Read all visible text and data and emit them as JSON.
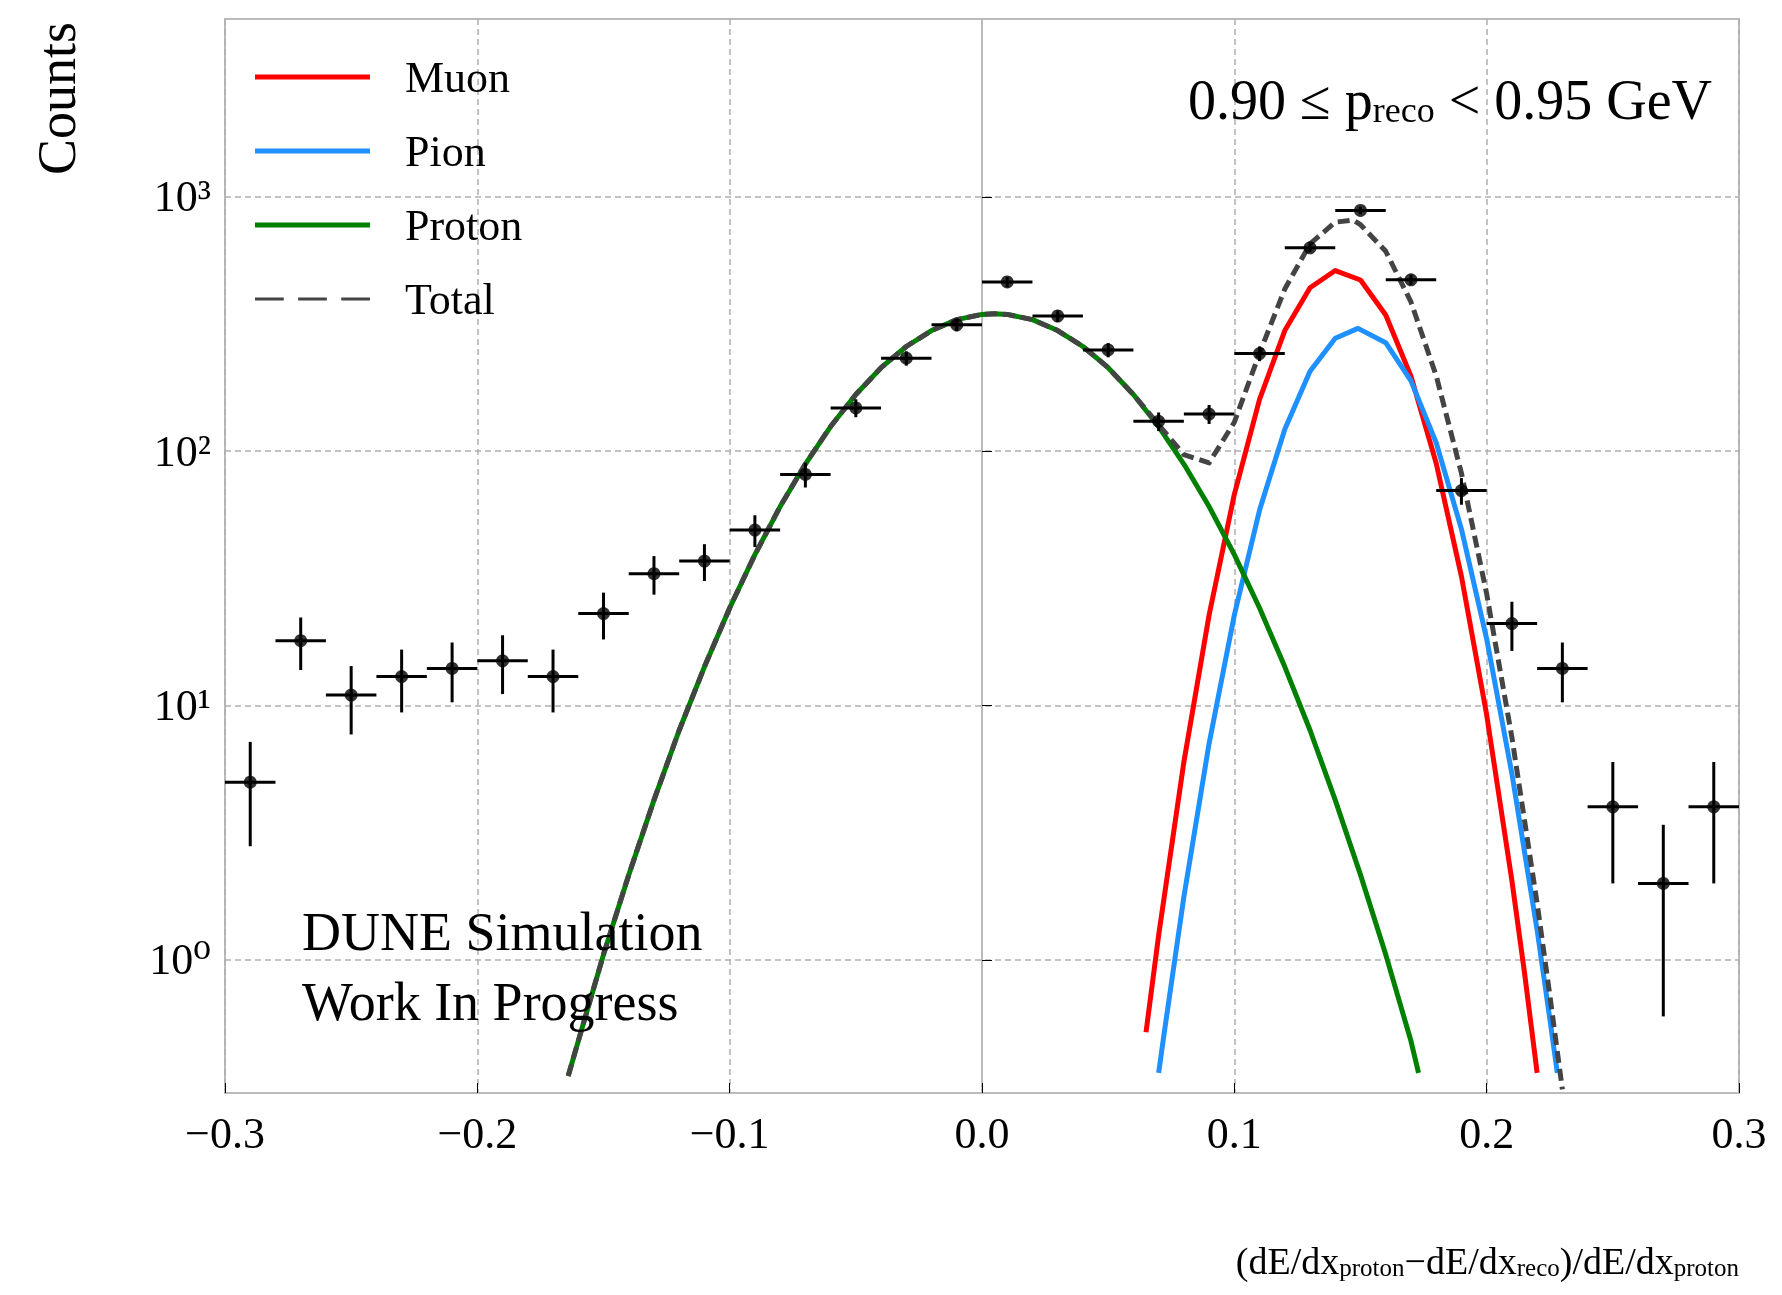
{
  "chart_data": {
    "type": "line",
    "xlabel": "(dE/dx$_{proton}$−dE/dx$_{reco}$)/dE/dx$_{proton}$",
    "ylabel": "Counts",
    "annotations": [
      "0.90 ≤ p$_{reco}$ < 0.95 GeV",
      "DUNE Simulation",
      "Work In Progress"
    ],
    "xlim": [
      -0.3,
      0.3
    ],
    "xticks": [
      {
        "value": -0.3,
        "label": "−0.3"
      },
      {
        "value": -0.2,
        "label": "−0.2"
      },
      {
        "value": -0.1,
        "label": "−0.1"
      },
      {
        "value": 0,
        "label": "0.0"
      },
      {
        "value": 0.1,
        "label": "0.1"
      },
      {
        "value": 0.2,
        "label": "0.2"
      },
      {
        "value": 0.3,
        "label": "0.3"
      }
    ],
    "ylim": [
      0.3,
      5000
    ],
    "yticks": [
      {
        "value": 1,
        "label": "10⁰"
      },
      {
        "value": 10,
        "label": "10¹"
      },
      {
        "value": 100,
        "label": "10²"
      },
      {
        "value": 1000,
        "label": "10³"
      }
    ],
    "log": "y",
    "grid": true,
    "legend": "top left",
    "series": [
      {
        "type": "scatter",
        "color": "#000000",
        "marker": "circle",
        "x": [
          -0.29,
          -0.27,
          -0.25,
          -0.23,
          -0.21,
          -0.19,
          -0.17,
          -0.15,
          -0.13,
          -0.11,
          -0.09,
          -0.07,
          -0.05,
          -0.03,
          -0.01,
          0.01,
          0.03,
          0.05,
          0.07,
          0.09,
          0.11,
          0.13,
          0.15,
          0.17,
          0.19,
          0.21,
          0.23,
          0.25,
          0.27,
          0.29
        ],
        "values": [
          5,
          18,
          11,
          13,
          14,
          15,
          13,
          23,
          33,
          37,
          49,
          81,
          148,
          232,
          314,
          463,
          340,
          250,
          131,
          140,
          242,
          630,
          884,
          472,
          70,
          21,
          14,
          4,
          2,
          4
        ],
        "errors": [
          2.2,
          4.2,
          3.3,
          3.6,
          3.7,
          3.9,
          3.6,
          4.8,
          5.7,
          6.1,
          7,
          9,
          12,
          15,
          18,
          22,
          18,
          16,
          11,
          12,
          16,
          25,
          30,
          22,
          8.4,
          4.6,
          3.7,
          2,
          1.4,
          2
        ],
        "xerrors": [
          0.01,
          0.01,
          0.01,
          0.01,
          0.01,
          0.01,
          0.01,
          0.01,
          0.01,
          0.01,
          0.01,
          0.01,
          0.01,
          0.01,
          0.01,
          0.01,
          0.01,
          0.01,
          0.01,
          0.01,
          0.01,
          0.01,
          0.01,
          0.01,
          0.01,
          0.01,
          0.01,
          0.01,
          0.01,
          0.01
        ]
      },
      {
        "name": "Muon",
        "color": "#ff0000",
        "marker": "none",
        "line_style": "solid",
        "x": [
          0.065,
          0.07,
          0.08,
          0.09,
          0.1,
          0.11,
          0.12,
          0.13,
          0.14,
          0.15,
          0.16,
          0.17,
          0.18,
          0.19,
          0.2,
          0.21,
          0.215,
          0.22
        ],
        "values": [
          0.52,
          1.25,
          6,
          22.7,
          67.7,
          160,
          298,
          439,
          513,
          471,
          343,
          197,
          89.7,
          32.2,
          9.2,
          2.05,
          0.89,
          0.36
        ]
      },
      {
        "name": "Pion",
        "color": "#1e90ff",
        "marker": "none",
        "line_style": "solid",
        "x": [
          0.07,
          0.072,
          0.08,
          0.09,
          0.1,
          0.11,
          0.12,
          0.13,
          0.14,
          0.149,
          0.16,
          0.17,
          0.18,
          0.19,
          0.2,
          0.21,
          0.22,
          0.225,
          0.228
        ],
        "values": [
          0.36,
          0.5,
          1.77,
          7.1,
          22.7,
          58.7,
          122,
          206,
          278,
          304,
          267,
          189,
          108,
          49.4,
          18.3,
          5.4,
          1.31,
          0.59,
          0.36
        ]
      },
      {
        "name": "Proton",
        "color": "#008000",
        "marker": "none",
        "line_style": "solid",
        "x": [
          -0.164,
          -0.16,
          -0.15,
          -0.14,
          -0.13,
          -0.12,
          -0.11,
          -0.1,
          -0.09,
          -0.08,
          -0.07,
          -0.06,
          -0.05,
          -0.04,
          -0.03,
          -0.02,
          -0.01,
          0,
          0.005,
          0.01,
          0.02,
          0.03,
          0.04,
          0.05,
          0.06,
          0.07,
          0.08,
          0.09,
          0.1,
          0.11,
          0.12,
          0.13,
          0.14,
          0.15,
          0.16,
          0.17,
          0.173
        ],
        "values": [
          0.35,
          0.48,
          1.05,
          2.16,
          4.25,
          8,
          14.2,
          24.2,
          39.2,
          60.6,
          89,
          125,
          167,
          213,
          258,
          298,
          329,
          345,
          347,
          345,
          329,
          298,
          258,
          213,
          167,
          125,
          89,
          60.6,
          39.2,
          24.2,
          14.2,
          8,
          4.25,
          2.16,
          1.05,
          0.48,
          0.36
        ]
      },
      {
        "name": "Total",
        "color": "#444444",
        "marker": "none",
        "line_style": "dashed",
        "x": [
          -0.164,
          -0.16,
          -0.15,
          -0.14,
          -0.13,
          -0.12,
          -0.11,
          -0.1,
          -0.09,
          -0.08,
          -0.07,
          -0.06,
          -0.05,
          -0.04,
          -0.03,
          -0.02,
          -0.01,
          0,
          0.005,
          0.01,
          0.02,
          0.03,
          0.04,
          0.05,
          0.06,
          0.07,
          0.08,
          0.09,
          0.1,
          0.11,
          0.12,
          0.13,
          0.14,
          0.147,
          0.15,
          0.16,
          0.17,
          0.18,
          0.19,
          0.2,
          0.21,
          0.22,
          0.225,
          0.23
        ],
        "values": [
          0.35,
          0.48,
          1.05,
          2.16,
          4.25,
          8,
          14.2,
          24.2,
          39.2,
          60.6,
          89,
          125,
          167,
          213,
          258,
          298,
          329,
          345,
          347,
          345,
          329,
          298,
          258,
          213,
          167,
          127,
          97,
          90,
          130,
          243,
          434,
          653,
          795,
          810,
          777,
          611,
          386,
          198,
          82,
          27.5,
          7.5,
          1.67,
          0.73,
          0.31
        ]
      }
    ]
  }
}
